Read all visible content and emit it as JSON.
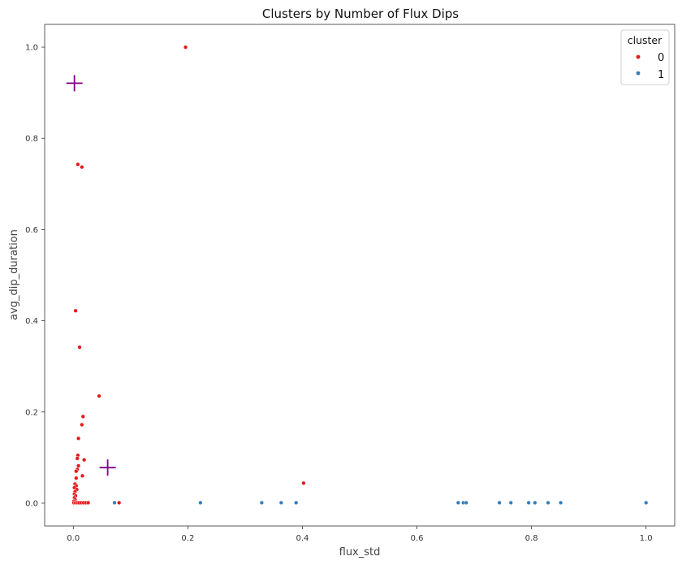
{
  "chart_data": {
    "type": "scatter",
    "title": "Clusters by Number of Flux Dips",
    "xlabel": "flux_std",
    "ylabel": "avg_dip_duration",
    "xlim": [
      -0.05,
      1.05
    ],
    "ylim": [
      -0.05,
      1.05
    ],
    "xticks": [
      "0.0",
      "0.2",
      "0.4",
      "0.6",
      "0.8",
      "1.0"
    ],
    "yticks": [
      "0.0",
      "0.2",
      "0.4",
      "0.6",
      "0.8",
      "1.0"
    ],
    "grid": false,
    "legend": {
      "title": "cluster",
      "placement": "top-right"
    },
    "colors": {
      "0": "#e41a1c",
      "1": "#377eb8",
      "centroid": "#800080"
    },
    "series": [
      {
        "name": "0",
        "color": "#e41a1c",
        "points": [
          [
            0.196,
            1.0
          ],
          [
            0.008,
            0.743
          ],
          [
            0.015,
            0.737
          ],
          [
            0.004,
            0.422
          ],
          [
            0.011,
            0.342
          ],
          [
            0.045,
            0.235
          ],
          [
            0.017,
            0.19
          ],
          [
            0.015,
            0.172
          ],
          [
            0.009,
            0.142
          ],
          [
            0.008,
            0.105
          ],
          [
            0.007,
            0.098
          ],
          [
            0.019,
            0.095
          ],
          [
            0.009,
            0.082
          ],
          [
            0.007,
            0.074
          ],
          [
            0.005,
            0.07
          ],
          [
            0.016,
            0.06
          ],
          [
            0.005,
            0.055
          ],
          [
            0.003,
            0.042
          ],
          [
            0.005,
            0.038
          ],
          [
            0.002,
            0.034
          ],
          [
            0.006,
            0.03
          ],
          [
            0.003,
            0.025
          ],
          [
            0.002,
            0.02
          ],
          [
            0.004,
            0.016
          ],
          [
            0.002,
            0.012
          ],
          [
            0.003,
            0.008
          ],
          [
            0.001,
            0.004
          ],
          [
            0.402,
            0.044
          ],
          [
            0.001,
            0.001
          ],
          [
            0.004,
            0.001
          ],
          [
            0.007,
            0.001
          ],
          [
            0.01,
            0.001
          ],
          [
            0.014,
            0.001
          ],
          [
            0.018,
            0.001
          ],
          [
            0.022,
            0.001
          ],
          [
            0.026,
            0.001
          ],
          [
            0.08,
            0.001
          ]
        ]
      },
      {
        "name": "1",
        "color": "#377eb8",
        "points": [
          [
            0.072,
            0.001
          ],
          [
            0.222,
            0.001
          ],
          [
            0.329,
            0.001
          ],
          [
            0.363,
            0.001
          ],
          [
            0.389,
            0.001
          ],
          [
            0.672,
            0.001
          ],
          [
            0.681,
            0.001
          ],
          [
            0.686,
            0.001
          ],
          [
            0.744,
            0.001
          ],
          [
            0.764,
            0.001
          ],
          [
            0.795,
            0.001
          ],
          [
            0.806,
            0.001
          ],
          [
            0.829,
            0.001
          ],
          [
            0.851,
            0.001
          ],
          [
            1.0,
            0.001
          ]
        ]
      }
    ],
    "centroids": [
      {
        "cluster": "0",
        "x": 0.002,
        "y": 0.921
      },
      {
        "cluster": "1",
        "x": 0.06,
        "y": 0.078
      }
    ]
  }
}
